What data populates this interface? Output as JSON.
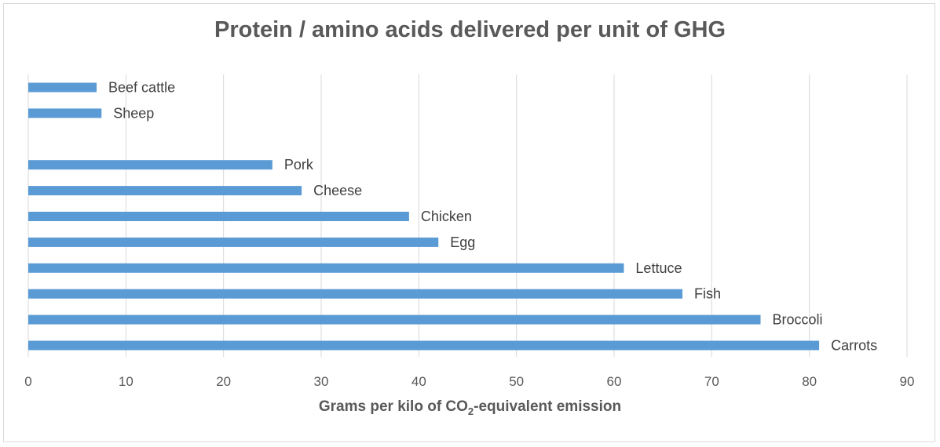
{
  "chart_data": {
    "type": "bar",
    "orientation": "horizontal",
    "title": "Protein / amino acids delivered per unit of GHG",
    "xlabel_parts": {
      "before": "Grams per kilo of CO",
      "subscript": "2",
      "after": "-equivalent emission"
    },
    "ylabel": "",
    "categories": [
      "Beef cattle",
      "Sheep",
      "",
      "Pork",
      "Cheese",
      "Chicken",
      "Egg",
      "Lettuce",
      "Fish",
      "Broccoli",
      "Carrots"
    ],
    "values": [
      7,
      7.5,
      null,
      25,
      28,
      39,
      42,
      61,
      67,
      75,
      81
    ],
    "xlim": [
      0,
      90
    ],
    "xticks": [
      0,
      10,
      20,
      30,
      40,
      50,
      60,
      70,
      80,
      90
    ],
    "xtick_labels": [
      "0",
      "10",
      "20",
      "30",
      "40",
      "50",
      "60",
      "70",
      "80",
      "90"
    ],
    "grid": "vertical",
    "legend": "none",
    "data_labels": "category names at bar ends",
    "bar_color": "#5b9bd5"
  },
  "colors": {
    "grid": "#d9d9d9",
    "text": "#595959",
    "border": "#d9d9d9"
  }
}
